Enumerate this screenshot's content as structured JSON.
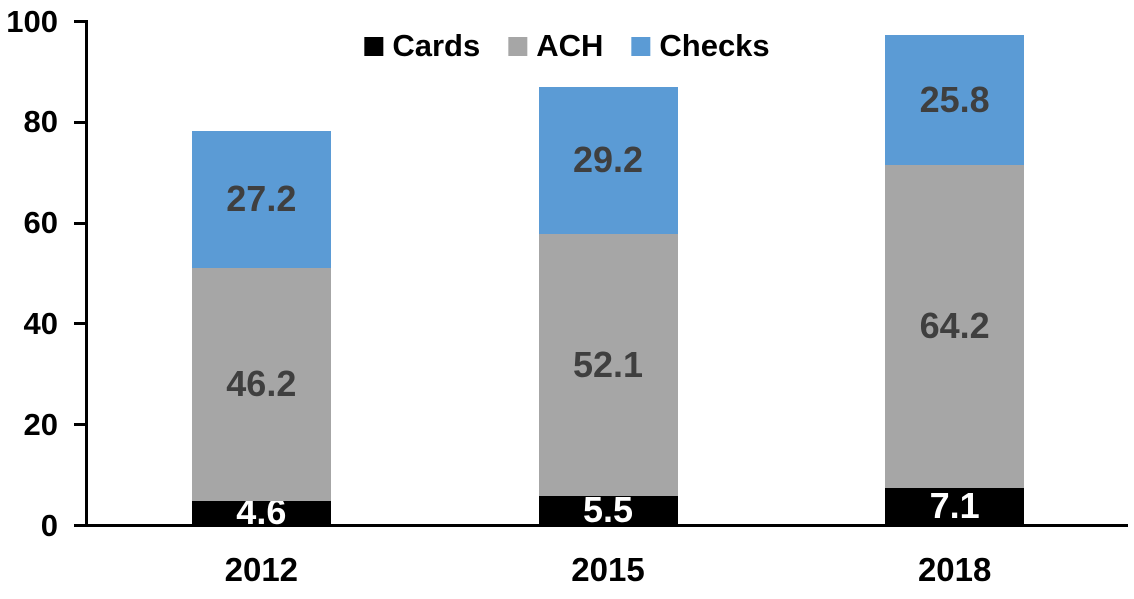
{
  "chart_data": {
    "type": "bar",
    "stacked": true,
    "title": "",
    "xlabel": "",
    "ylabel": "",
    "categories": [
      "2012",
      "2015",
      "2018"
    ],
    "series": [
      {
        "name": "Cards",
        "color": "#000000",
        "label_color": "#ffffff",
        "values": [
          4.6,
          5.5,
          7.1
        ]
      },
      {
        "name": "ACH",
        "color": "#a6a6a6",
        "label_color": "#3f3f3f",
        "values": [
          46.2,
          52.1,
          64.2
        ]
      },
      {
        "name": "Checks",
        "color": "#5b9bd5",
        "label_color": "#3f3f3f",
        "values": [
          27.2,
          29.2,
          25.8
        ]
      }
    ],
    "ylim": [
      0,
      100
    ],
    "yticks": [
      0,
      20,
      40,
      60,
      80,
      100
    ],
    "grid": false,
    "legend_position": "top-center",
    "legend_labels": [
      "Cards",
      "ACH",
      "Checks"
    ],
    "axis_color": "#000000",
    "text_color": "#000000",
    "background": "#ffffff"
  }
}
